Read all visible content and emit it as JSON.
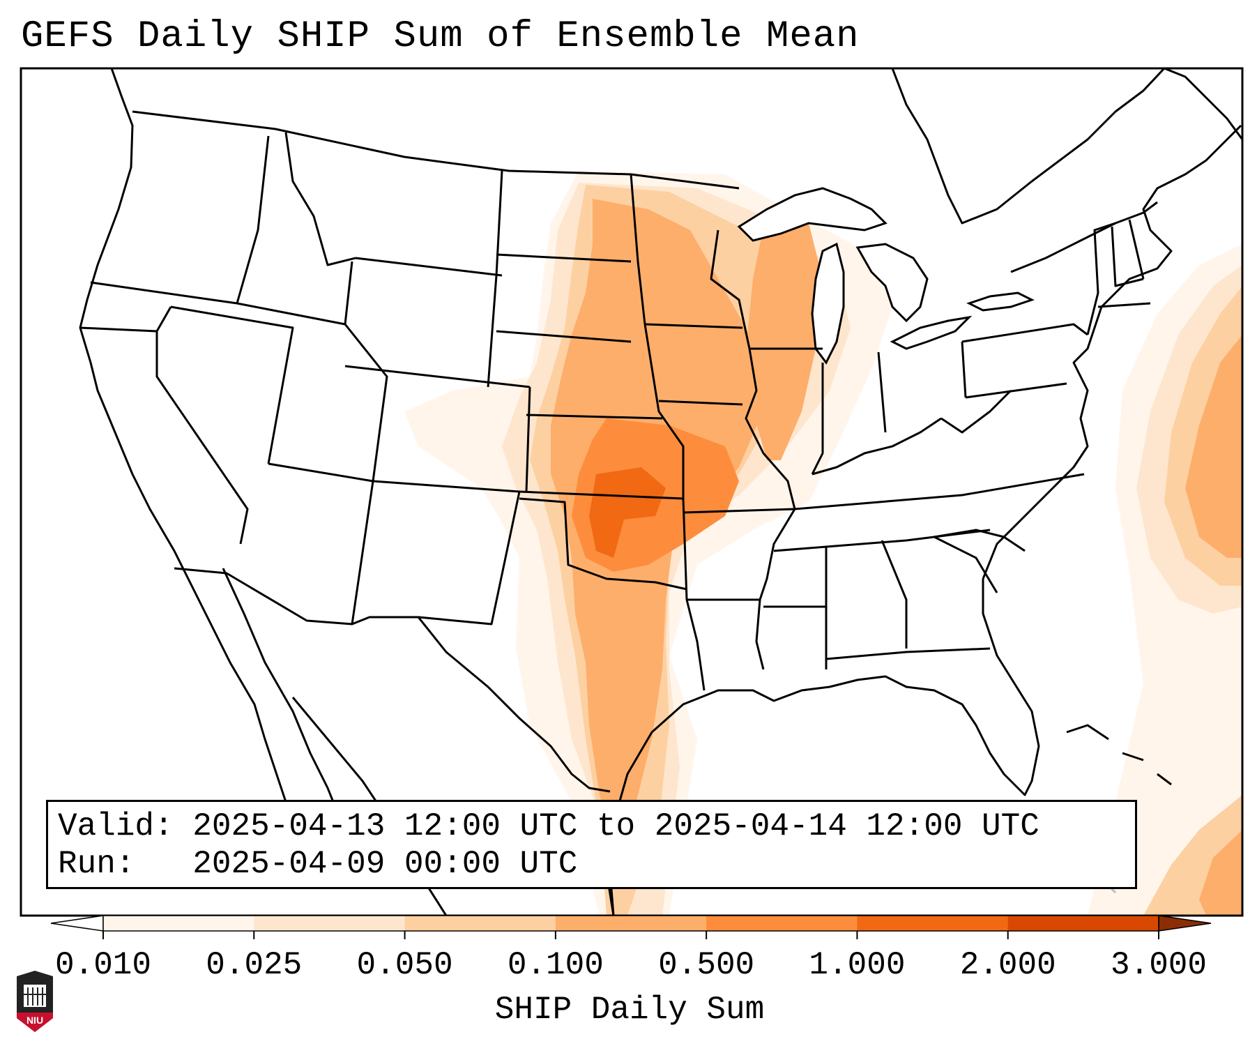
{
  "title": "GEFS Daily SHIP Sum of Ensemble Mean",
  "info": {
    "valid_label": "Valid:",
    "valid_value": "2025-04-13 12:00 UTC to 2025-04-14 12:00 UTC",
    "run_label": "Run:",
    "run_value": "2025-04-09 00:00 UTC"
  },
  "colorbar": {
    "label": "SHIP Daily Sum",
    "ticks": [
      "0.010",
      "0.025",
      "0.050",
      "0.100",
      "0.500",
      "1.000",
      "2.000",
      "3.000"
    ],
    "colors": [
      "#fff5eb",
      "#fee6ce",
      "#fdd0a2",
      "#fdae6b",
      "#fd8d3c",
      "#f16913",
      "#d94801",
      "#8c2d04"
    ]
  },
  "logo": {
    "text": "NIU",
    "color": "#c8102e"
  }
}
